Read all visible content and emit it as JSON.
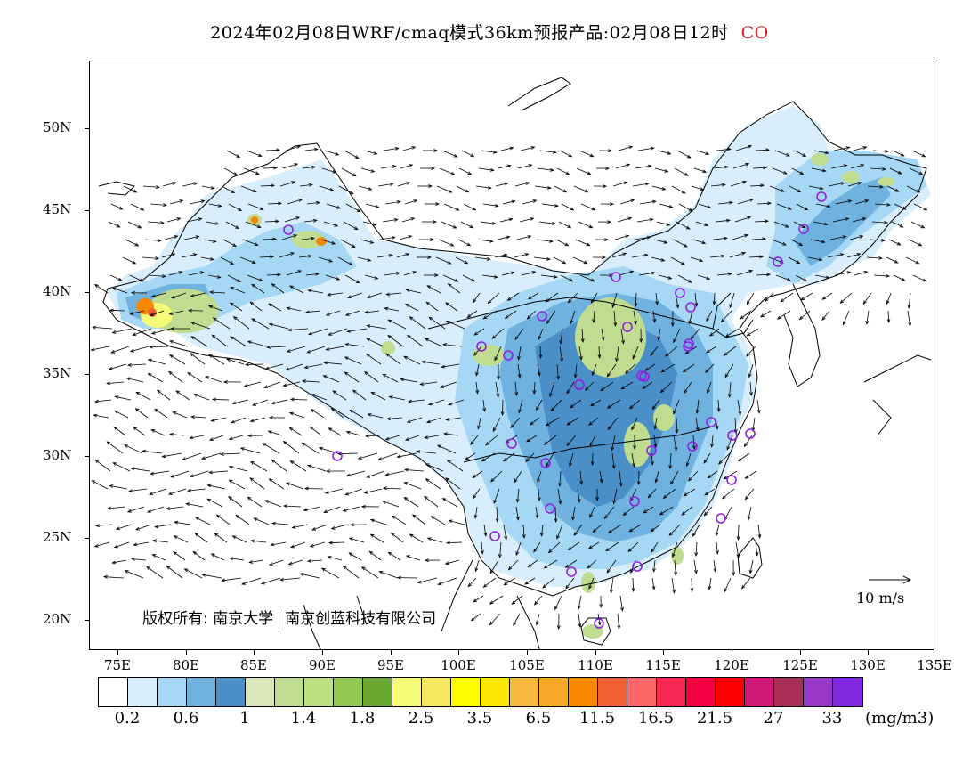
{
  "title": {
    "text": "2024年02月08日WRF/cmaq模式36km预报产品:02月08日12时",
    "species": "CO",
    "species_color": "#e02020"
  },
  "axes": {
    "lat_labels": [
      "50N",
      "45N",
      "40N",
      "35N",
      "30N",
      "25N",
      "20N"
    ],
    "lon_labels": [
      "75E",
      "80E",
      "85E",
      "90E",
      "95E",
      "100E",
      "105E",
      "110E",
      "115E",
      "120E",
      "125E",
      "130E",
      "135E"
    ]
  },
  "copyright": {
    "owner1": "版权所有: 南京大学",
    "owner2": "南京创蓝科技有限公司"
  },
  "wind_reference": {
    "label": "10 m/s"
  },
  "colorbar": {
    "colors": [
      "#ffffff",
      "#d8eefc",
      "#a6d8f5",
      "#6fb2e0",
      "#4a8fc8",
      "#dce8b8",
      "#c0dc90",
      "#bce080",
      "#90c850",
      "#6aa832",
      "#f4fc78",
      "#f6e860",
      "#fffc00",
      "#fce800",
      "#f8b840",
      "#f8a828",
      "#f88800",
      "#f06030",
      "#fc6868",
      "#f42850",
      "#f40040",
      "#fc0000",
      "#d01878",
      "#a83058",
      "#9838c8",
      "#8028e0"
    ],
    "labels": [
      "0.2",
      "0.6",
      "1",
      "1.4",
      "1.8",
      "2.5",
      "3.5",
      "6.5",
      "11.5",
      "16.5",
      "21.5",
      "27",
      "33"
    ],
    "unit": "(mg/m3)"
  },
  "map_colors": {
    "land_outline": "#000000",
    "low": "#d8eefc",
    "low2": "#a6d8f5",
    "mid": "#6fb2e0",
    "mid2": "#4a8fc8",
    "high": "#c0dc90",
    "high2": "#f4fc78",
    "hot": "#f88800",
    "hot2": "#f06030",
    "station_marker": "#9020e0"
  }
}
